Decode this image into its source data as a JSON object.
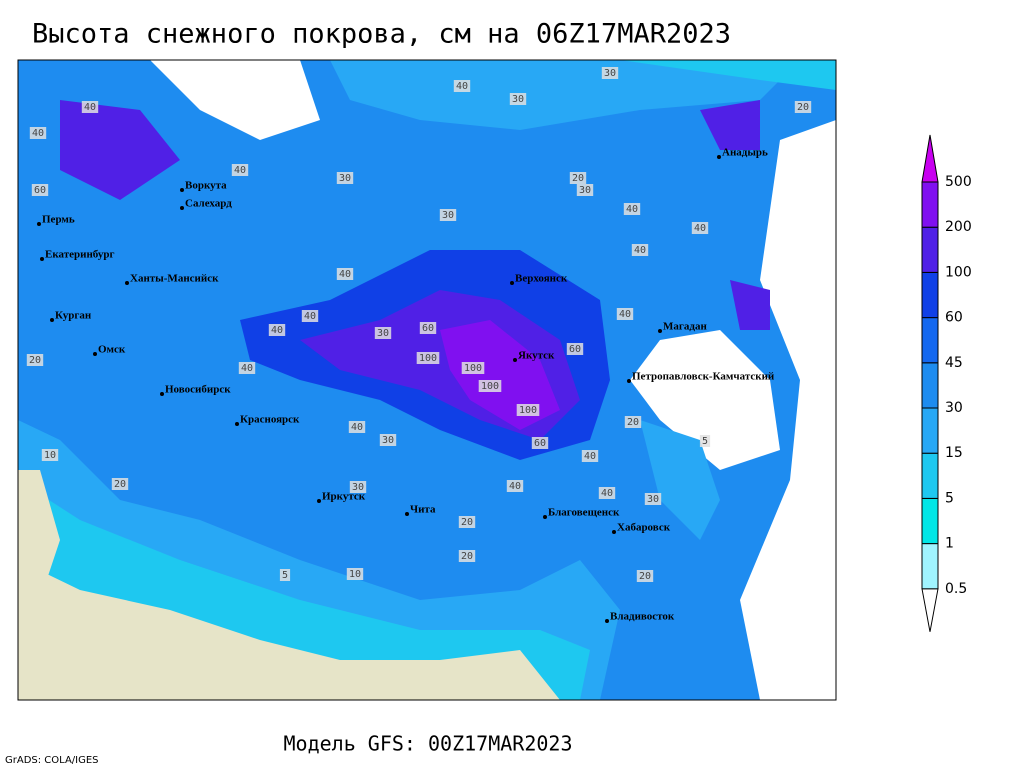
{
  "header": {
    "title": "Высота снежного покрова, см на 06Z17MAR2023"
  },
  "map": {
    "cities": [
      "Воркута",
      "Салехард",
      "Пермь",
      "Екатеринбург",
      "Ханты-Мансийск",
      "Курган",
      "Омск",
      "Новосибирск",
      "Красноярск",
      "Иркутск",
      "Чита",
      "Верхоянск",
      "Якутск",
      "Магадан",
      "Анадырь",
      "Петропавловск-Камчатский",
      "Благовещенск",
      "Хабаровск",
      "Владивосток"
    ],
    "contour_labels": [
      30,
      40,
      30,
      20,
      40,
      30,
      20,
      30,
      40,
      40,
      60,
      30,
      100,
      100,
      100,
      100,
      60,
      40,
      40,
      40,
      20,
      40,
      40,
      30,
      60,
      40,
      20,
      10,
      20,
      30,
      40,
      40,
      30,
      20,
      20,
      5,
      10,
      20,
      5,
      40,
      30,
      40,
      40,
      60,
      40
    ]
  },
  "legend": {
    "levels": [
      0.5,
      1,
      5,
      15,
      30,
      45,
      60,
      100,
      200,
      500
    ],
    "colors": [
      "#ffffff",
      "#a0f4ff",
      "#00e6e6",
      "#1ec8f0",
      "#28a8f5",
      "#1e8cf0",
      "#1468f0",
      "#1040e6",
      "#5020e6",
      "#8010f0",
      "#c800f0"
    ]
  },
  "footer": {
    "model": "Модель GFS: 00Z17MAR2023",
    "credit": "GrADS: COLA/IGES"
  }
}
